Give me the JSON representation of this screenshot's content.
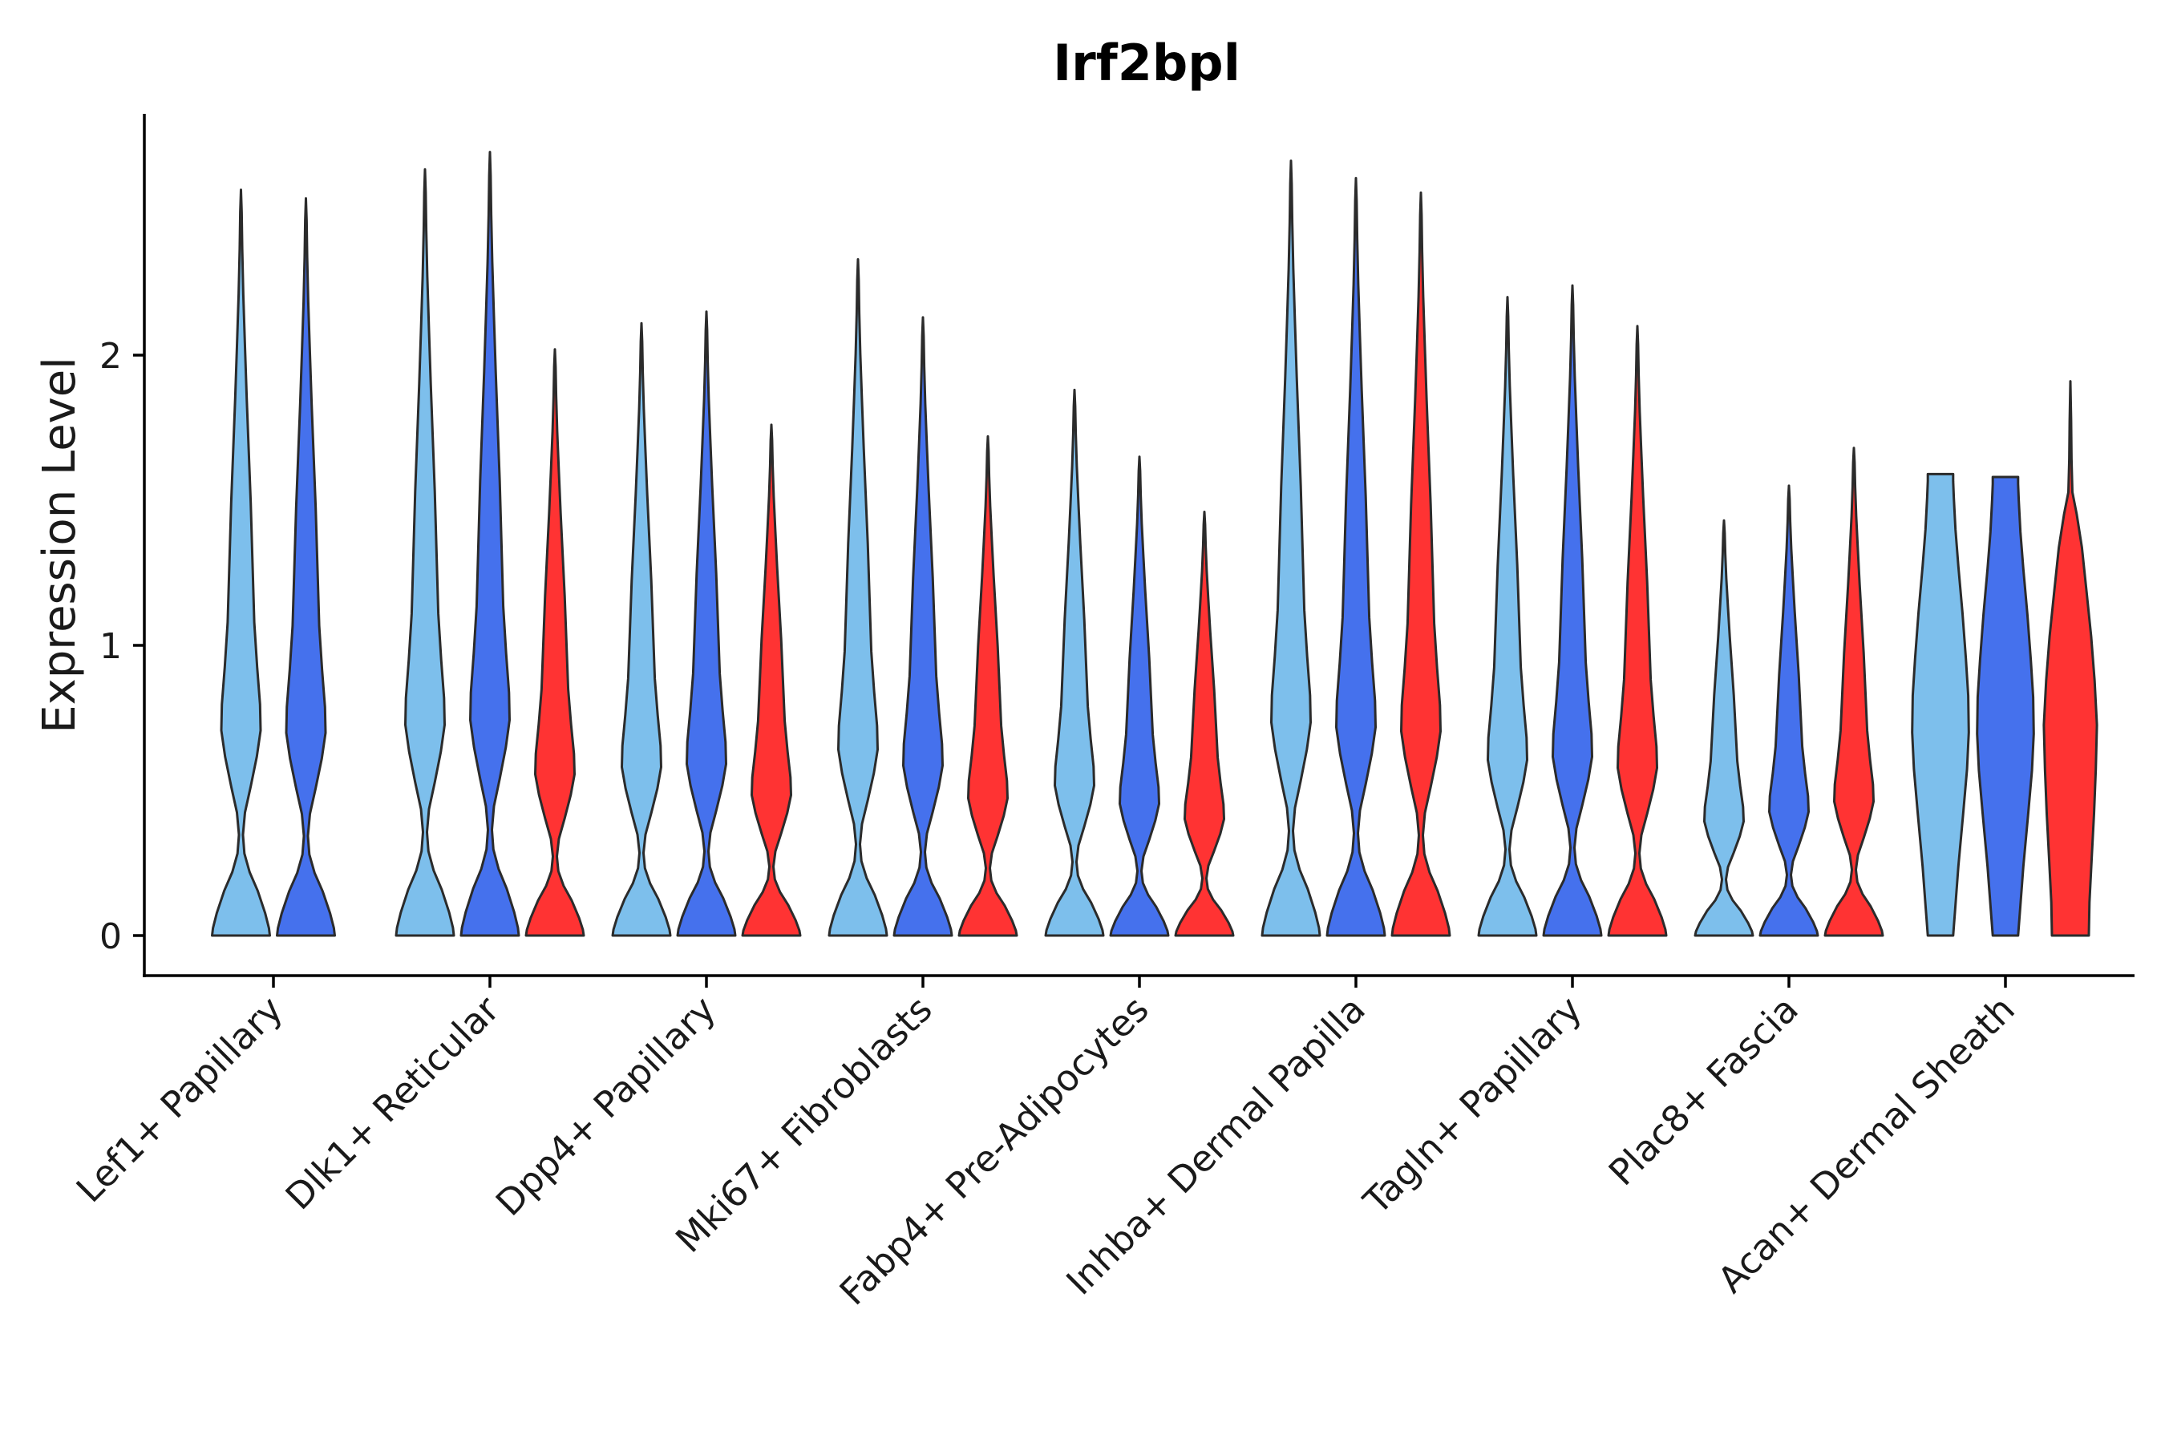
{
  "chart_data": {
    "type": "violin",
    "title": "Irf2bpl",
    "xlabel": "",
    "ylabel": "Expression Level",
    "ylim": [
      -0.14,
      2.85
    ],
    "yticks": [
      0,
      1,
      2
    ],
    "grid": false,
    "legend": "none",
    "series_colors": [
      "#7dbfec",
      "#4571ed",
      "#ff3333"
    ],
    "categories": [
      "Lef1+ Papillary",
      "Dlk1+ Reticular",
      "Dpp4+ Papillary",
      "Mki67+ Fibroblasts",
      "Fabp4+ Pre-Adipocytes",
      "Inhba+ Dermal Papilla",
      "Tagln+ Papillary",
      "Plac8+ Fascia",
      "Acan+ Dermal Sheath"
    ],
    "groups": [
      {
        "category": "Lef1+ Papillary",
        "violins": [
          {
            "series": 0,
            "max": 2.57,
            "shape": "bimodal"
          },
          {
            "series": 1,
            "max": 2.54,
            "shape": "bimodal"
          }
        ]
      },
      {
        "category": "Dlk1+ Reticular",
        "violins": [
          {
            "series": 0,
            "max": 2.64,
            "shape": "bimodal"
          },
          {
            "series": 1,
            "max": 2.7,
            "shape": "bimodal"
          },
          {
            "series": 2,
            "max": 2.02,
            "shape": "bimodal"
          }
        ]
      },
      {
        "category": "Dpp4+ Papillary",
        "violins": [
          {
            "series": 0,
            "max": 2.11,
            "shape": "bimodal"
          },
          {
            "series": 1,
            "max": 2.15,
            "shape": "bimodal"
          },
          {
            "series": 2,
            "max": 1.76,
            "shape": "bimodal"
          }
        ]
      },
      {
        "category": "Mki67+ Fibroblasts",
        "violins": [
          {
            "series": 0,
            "max": 2.33,
            "shape": "bimodal"
          },
          {
            "series": 1,
            "max": 2.13,
            "shape": "bimodal"
          },
          {
            "series": 2,
            "max": 1.72,
            "shape": "bimodal"
          }
        ]
      },
      {
        "category": "Fabp4+ Pre-Adipocytes",
        "violins": [
          {
            "series": 0,
            "max": 1.88,
            "shape": "bimodal"
          },
          {
            "series": 1,
            "max": 1.65,
            "shape": "bimodal"
          },
          {
            "series": 2,
            "max": 1.46,
            "shape": "bimodal"
          }
        ]
      },
      {
        "category": "Inhba+ Dermal Papilla",
        "violins": [
          {
            "series": 0,
            "max": 2.67,
            "shape": "bimodal"
          },
          {
            "series": 1,
            "max": 2.61,
            "shape": "bimodal"
          },
          {
            "series": 2,
            "max": 2.56,
            "shape": "bimodal"
          }
        ]
      },
      {
        "category": "Tagln+ Papillary",
        "violins": [
          {
            "series": 0,
            "max": 2.2,
            "shape": "bimodal"
          },
          {
            "series": 1,
            "max": 2.24,
            "shape": "bimodal"
          },
          {
            "series": 2,
            "max": 2.1,
            "shape": "bimodal"
          }
        ]
      },
      {
        "category": "Plac8+ Fascia",
        "violins": [
          {
            "series": 0,
            "max": 1.43,
            "shape": "bimodal"
          },
          {
            "series": 1,
            "max": 1.55,
            "shape": "bimodal"
          },
          {
            "series": 2,
            "max": 1.68,
            "shape": "bimodal"
          }
        ]
      },
      {
        "category": "Acan+ Dermal Sheath",
        "violins": [
          {
            "series": 0,
            "max": 1.59,
            "shape": "flat-top"
          },
          {
            "series": 1,
            "max": 1.58,
            "shape": "flat-top"
          },
          {
            "series": 2,
            "max": 1.91,
            "shape": "spindle"
          }
        ]
      }
    ]
  }
}
